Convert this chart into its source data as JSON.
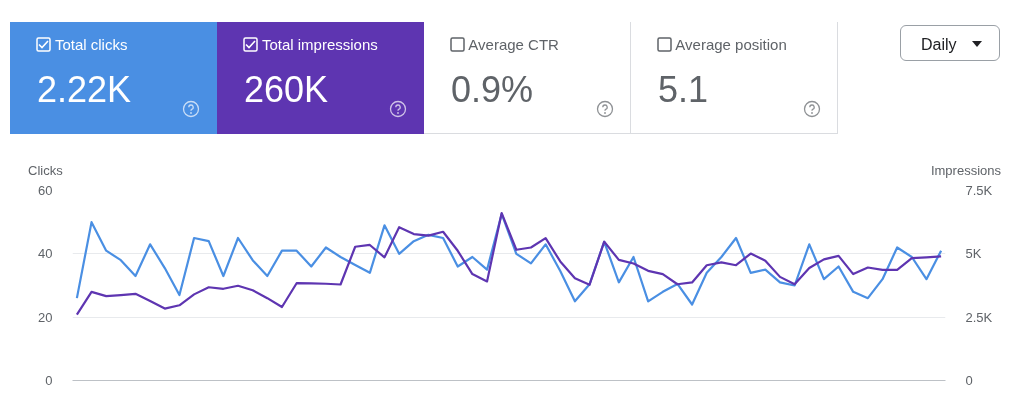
{
  "chart_data": {
    "type": "line",
    "ylabel": "Clicks",
    "y2label": "Impressions",
    "annotations": [
      "Total clicks",
      "2.22K",
      "Total impressions",
      "260K",
      "Average CTR",
      "0.9%",
      "Average position",
      "5.1",
      "Daily"
    ],
    "categories": [
      null,
      null,
      null,
      null,
      null,
      null,
      null,
      null,
      null,
      null,
      null,
      null,
      null,
      null,
      null,
      null,
      null,
      null,
      null,
      null,
      null,
      null,
      null,
      null,
      null,
      null,
      null,
      null,
      null,
      null,
      null,
      null,
      null,
      null,
      null,
      null,
      null,
      null,
      null,
      null,
      null,
      null,
      null,
      null,
      null,
      null,
      null,
      null,
      null,
      null,
      null,
      null,
      null,
      null,
      null,
      null,
      null,
      null,
      null,
      null
    ],
    "series": [
      {
        "color": "#4a8fe3",
        "values": [
          26,
          50,
          41,
          38,
          33,
          43,
          35.5,
          27,
          45,
          44,
          33,
          45,
          38,
          33,
          41,
          41,
          36,
          42,
          39,
          36.5,
          34,
          49,
          40,
          44,
          46,
          45,
          36,
          39,
          35,
          52.6,
          40,
          37,
          43,
          34.6,
          25,
          30.4,
          43.8,
          31,
          39,
          25,
          28,
          30.5,
          24,
          34,
          39,
          45,
          34,
          35,
          31,
          30,
          43,
          32,
          36,
          28,
          26,
          32,
          42,
          39,
          32,
          41
        ]
      },
      {
        "color": "#5e35b1",
        "axis": "y2",
        "values": [
          2600,
          3500,
          3330,
          3370,
          3420,
          3140,
          2840,
          2970,
          3400,
          3680,
          3620,
          3740,
          3560,
          3250,
          2900,
          3840,
          3830,
          3820,
          3790,
          5280,
          5350,
          4860,
          6050,
          5780,
          5720,
          5870,
          5120,
          4200,
          3910,
          6610,
          5160,
          5250,
          5620,
          4700,
          4040,
          3780,
          5480,
          4760,
          4620,
          4330,
          4200,
          3800,
          3870,
          4550,
          4660,
          4550,
          5010,
          4730,
          4090,
          3800,
          4440,
          4780,
          4920,
          4200,
          4460,
          4370,
          4370,
          4830,
          4860,
          4900
        ]
      }
    ],
    "ylim": [
      0,
      60
    ],
    "yticks": [
      0,
      20,
      40,
      60
    ],
    "y2lim": [
      0,
      7500
    ],
    "y2ticks": [
      0,
      {
        "value": 2500,
        "label": "2.5K"
      },
      {
        "value": 5000,
        "label": "5K"
      },
      {
        "value": 7500,
        "label": "7.5K"
      }
    ],
    "grid": "y",
    "tick_labels": "y",
    "line_style": "solid",
    "marker": "none"
  }
}
